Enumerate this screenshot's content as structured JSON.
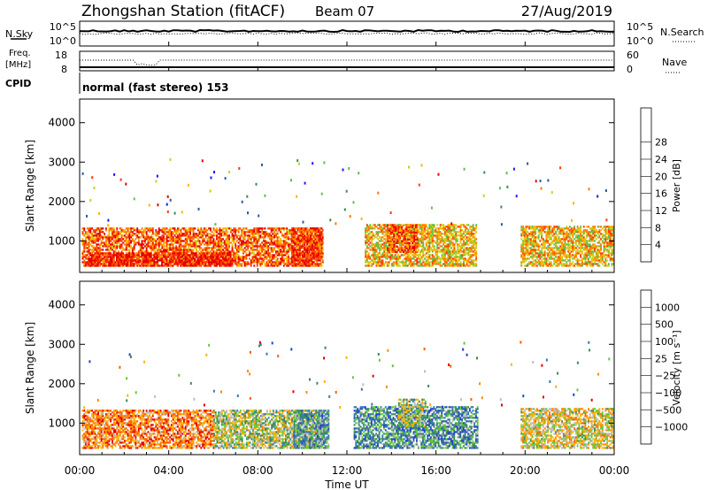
{
  "header": {
    "title": "Zhongshan Station (fitACF)",
    "beam": "Beam 07",
    "date": "27/Aug/2019"
  },
  "nsky_panel": {
    "left_label": "N.Sky",
    "left_ticks": [
      "10^5",
      "10^0"
    ],
    "right_label": "N.Search",
    "right_ticks": [
      "10^5",
      "10^0"
    ]
  },
  "freq_panel": {
    "left_label_1": "Freq.",
    "left_label_2": "[MHz]",
    "left_ticks": [
      "18",
      "8"
    ],
    "right_label": "Nave",
    "right_ticks": [
      "60",
      "0"
    ]
  },
  "cpid": {
    "label": "CPID",
    "text": "normal (fast stereo) 153"
  },
  "time_axis": {
    "label": "Time UT",
    "ticks": [
      "00:00",
      "04:00",
      "08:00",
      "12:00",
      "16:00",
      "20:00",
      "00:00"
    ]
  },
  "chart_data": [
    {
      "type": "heatmap",
      "name": "power-panel",
      "ylabel": "Slant Range [km]",
      "yticks": [
        "1000",
        "2000",
        "3000",
        "4000"
      ],
      "ylim": [
        200,
        4600
      ],
      "xlim_hours": [
        0,
        24
      ],
      "colorbar_label": "Power [dB]",
      "colorbar_ticks": [
        "4",
        "8",
        "12",
        "16",
        "20",
        "24",
        "28"
      ],
      "colorbar_colors": [
        "#1919ff",
        "#2a5aa8",
        "#3c8c5a",
        "#5cc24a",
        "#c8d21e",
        "#ffb400",
        "#ff7800",
        "#ff3c00",
        "#e60000"
      ],
      "regions": [
        {
          "t": [
            0.1,
            10.9
          ],
          "r": [
            350,
            1300
          ],
          "level": 0.78
        },
        {
          "t": [
            0.3,
            6.8
          ],
          "r": [
            350,
            700
          ],
          "level": 0.95
        },
        {
          "t": [
            9.5,
            10.9
          ],
          "r": [
            350,
            1300
          ],
          "level": 0.85
        },
        {
          "t": [
            12.8,
            17.8
          ],
          "r": [
            350,
            1400
          ],
          "level": 0.6
        },
        {
          "t": [
            13.8,
            15.2
          ],
          "r": [
            700,
            1400
          ],
          "level": 0.8
        },
        {
          "t": [
            19.8,
            24.0
          ],
          "r": [
            350,
            1350
          ],
          "level": 0.6
        }
      ]
    },
    {
      "type": "heatmap",
      "name": "velocity-panel",
      "ylabel": "Slant Range [km]",
      "yticks": [
        "1000",
        "2000",
        "3000",
        "4000"
      ],
      "ylim": [
        200,
        4600
      ],
      "xlim_hours": [
        0,
        24
      ],
      "colorbar_label": "Velocity [m s⁻¹]",
      "colorbar_ticks": [
        "1000",
        "500",
        "100",
        "25",
        "-25",
        "-100",
        "-500",
        "-1000"
      ],
      "colorbar_colors": [
        "#2244cc",
        "#3c78b4",
        "#3c8c5a",
        "#64c83c",
        "#bebebe",
        "#ffb400",
        "#ff8c00",
        "#ff5a00",
        "#e60000"
      ],
      "regions": [
        {
          "t": [
            0.1,
            6.0
          ],
          "r": [
            350,
            1300
          ],
          "level": 0.75
        },
        {
          "t": [
            6.0,
            10.9
          ],
          "r": [
            350,
            1300
          ],
          "level": 0.45
        },
        {
          "t": [
            9.6,
            11.2
          ],
          "r": [
            350,
            1300
          ],
          "level": 0.3
        },
        {
          "t": [
            12.3,
            17.9
          ],
          "r": [
            350,
            1400
          ],
          "level": 0.25
        },
        {
          "t": [
            14.3,
            15.5
          ],
          "r": [
            900,
            1600
          ],
          "level": 0.45
        },
        {
          "t": [
            19.8,
            24.0
          ],
          "r": [
            350,
            1350
          ],
          "level": 0.55
        }
      ]
    }
  ]
}
